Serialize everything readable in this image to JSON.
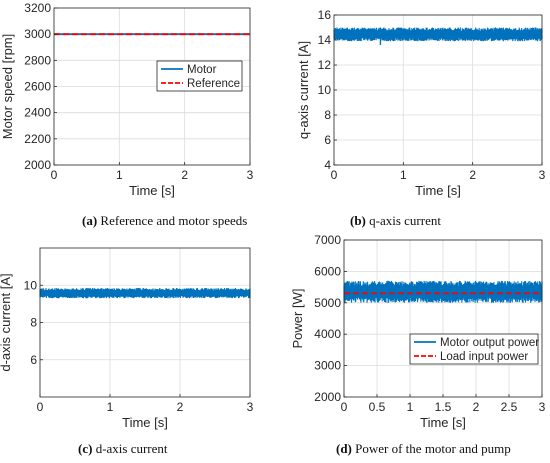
{
  "chart_data": [
    {
      "id": "a",
      "type": "line",
      "xlabel": "Time [s]",
      "ylabel": "Motor speed [rpm]",
      "xlim": [
        0,
        3
      ],
      "ylim": [
        2000,
        3200
      ],
      "xticks": [
        0,
        1,
        2,
        3
      ],
      "yticks": [
        2000,
        2200,
        2400,
        2600,
        2800,
        3000,
        3200
      ],
      "grid": true,
      "legend": "center-right",
      "series": [
        {
          "name": "Motor",
          "color": "#0072BD",
          "style": "solid",
          "kind": "constant",
          "y": 3000
        },
        {
          "name": "Reference",
          "color": "#FF0000",
          "style": "dashed",
          "kind": "constant",
          "y": 3000
        }
      ]
    },
    {
      "id": "b",
      "type": "line",
      "xlabel": "Time [s]",
      "ylabel": "q-axis current [A]",
      "xlim": [
        0,
        3
      ],
      "ylim": [
        4,
        16
      ],
      "xticks": [
        0,
        1,
        2,
        3
      ],
      "yticks": [
        4,
        6,
        8,
        10,
        12,
        14,
        16
      ],
      "grid": true,
      "legend": "none",
      "series": [
        {
          "name": "",
          "color": "#0072BD",
          "style": "solid",
          "kind": "band",
          "min": 13.9,
          "max": 15.0,
          "dip_x": 0.67,
          "dip_y": 13.6
        }
      ]
    },
    {
      "id": "c",
      "type": "line",
      "xlabel": "Time [s]",
      "ylabel": "d-axis current [A]",
      "xlim": [
        0,
        3
      ],
      "ylim": [
        4,
        12
      ],
      "xticks": [
        0,
        1,
        2,
        3
      ],
      "yticks": [
        6,
        8,
        10
      ],
      "grid": true,
      "legend": "none",
      "series": [
        {
          "name": "",
          "color": "#0072BD",
          "style": "solid",
          "kind": "band",
          "min": 9.3,
          "max": 9.85,
          "dip_x": 0.67,
          "dip_y": 9.3
        }
      ]
    },
    {
      "id": "d",
      "type": "line",
      "xlabel": "Time [s]",
      "ylabel": "Power [W]",
      "xlim": [
        0,
        3
      ],
      "ylim": [
        2000,
        7000
      ],
      "xticks": [
        0,
        0.5,
        1,
        1.5,
        2,
        2.5,
        3
      ],
      "yticks": [
        2000,
        3000,
        4000,
        5000,
        6000,
        7000
      ],
      "grid": true,
      "legend": "bottom-right",
      "series": [
        {
          "name": "Motor output power",
          "color": "#0072BD",
          "style": "solid",
          "kind": "band",
          "min": 5000,
          "max": 5700,
          "dip_x": 0.67,
          "dip_y": 5000
        },
        {
          "name": "Load input power",
          "color": "#FF0000",
          "style": "dashed",
          "kind": "constant",
          "y": 5300
        }
      ]
    }
  ],
  "captions": [
    {
      "label": "(a)",
      "text": " Reference and motor speeds"
    },
    {
      "label": "(b)",
      "text": " q-axis current"
    },
    {
      "label": "(c)",
      "text": " d-axis current"
    },
    {
      "label": "(d)",
      "text": " Power of the motor and pump"
    }
  ]
}
